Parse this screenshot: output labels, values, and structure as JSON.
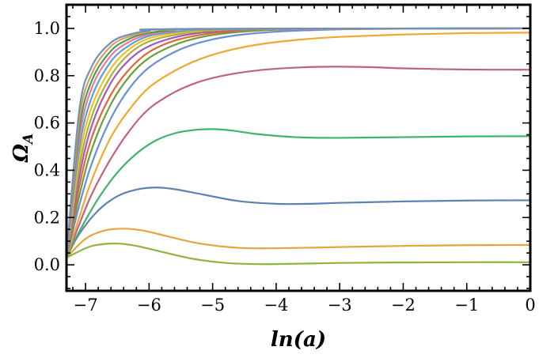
{
  "chart_data": {
    "type": "line",
    "xlabel": "ln(a)",
    "ylabel": "Ω",
    "ylabel_subscript": "A",
    "xlim": [
      -7.3,
      0
    ],
    "ylim": [
      -0.11,
      1.1
    ],
    "x_ticks": [
      -7,
      -6,
      -5,
      -4,
      -3,
      -2,
      -1,
      0
    ],
    "x_tick_labels": [
      "−7",
      "−6",
      "−5",
      "−4",
      "−3",
      "−2",
      "−1",
      "0"
    ],
    "y_ticks": [
      0.0,
      0.2,
      0.4,
      0.6,
      0.8,
      1.0
    ],
    "y_tick_labels": [
      "0.0",
      "0.2",
      "0.4",
      "0.6",
      "0.8",
      "1.0"
    ],
    "grid": false,
    "legend": "none",
    "series": [
      {
        "color": "#8eb43a",
        "points": [
          [
            -7.3,
            0.03
          ],
          [
            -7.0,
            0.07
          ],
          [
            -6.8,
            0.085
          ],
          [
            -6.5,
            0.09
          ],
          [
            -6.2,
            0.08
          ],
          [
            -5.8,
            0.055
          ],
          [
            -5.3,
            0.025
          ],
          [
            -4.8,
            0.008
          ],
          [
            -4.3,
            0.003
          ],
          [
            -3.8,
            0.004
          ],
          [
            -3.0,
            0.008
          ],
          [
            -2.0,
            0.01
          ],
          [
            -1.0,
            0.011
          ],
          [
            0,
            0.011
          ]
        ]
      },
      {
        "color": "#e8a33d",
        "points": [
          [
            -7.3,
            0.03
          ],
          [
            -7.0,
            0.11
          ],
          [
            -6.7,
            0.145
          ],
          [
            -6.4,
            0.153
          ],
          [
            -6.1,
            0.145
          ],
          [
            -5.7,
            0.12
          ],
          [
            -5.2,
            0.09
          ],
          [
            -4.6,
            0.072
          ],
          [
            -4.0,
            0.07
          ],
          [
            -3.0,
            0.075
          ],
          [
            -2.0,
            0.08
          ],
          [
            -1.0,
            0.083
          ],
          [
            0,
            0.084
          ]
        ]
      },
      {
        "color": "#5c81b3",
        "points": [
          [
            -7.3,
            0.03
          ],
          [
            -7.1,
            0.13
          ],
          [
            -6.8,
            0.23
          ],
          [
            -6.5,
            0.29
          ],
          [
            -6.2,
            0.318
          ],
          [
            -5.9,
            0.327
          ],
          [
            -5.6,
            0.32
          ],
          [
            -5.2,
            0.3
          ],
          [
            -4.6,
            0.27
          ],
          [
            -4.0,
            0.258
          ],
          [
            -3.5,
            0.258
          ],
          [
            -3.0,
            0.262
          ],
          [
            -2.0,
            0.268
          ],
          [
            -1.0,
            0.272
          ],
          [
            0,
            0.273
          ]
        ]
      },
      {
        "color": "#3fb26b",
        "points": [
          [
            -7.3,
            0.03
          ],
          [
            -7.1,
            0.14
          ],
          [
            -6.8,
            0.28
          ],
          [
            -6.5,
            0.39
          ],
          [
            -6.2,
            0.47
          ],
          [
            -5.9,
            0.525
          ],
          [
            -5.6,
            0.556
          ],
          [
            -5.3,
            0.57
          ],
          [
            -5.0,
            0.574
          ],
          [
            -4.7,
            0.568
          ],
          [
            -4.3,
            0.553
          ],
          [
            -3.7,
            0.54
          ],
          [
            -3.0,
            0.537
          ],
          [
            -2.0,
            0.54
          ],
          [
            -1.0,
            0.543
          ],
          [
            0,
            0.544
          ]
        ]
      },
      {
        "color": "#c06088",
        "points": [
          [
            -7.3,
            0.03
          ],
          [
            -7.1,
            0.17
          ],
          [
            -6.9,
            0.3
          ],
          [
            -6.6,
            0.45
          ],
          [
            -6.3,
            0.57
          ],
          [
            -6.0,
            0.66
          ],
          [
            -5.6,
            0.73
          ],
          [
            -5.2,
            0.775
          ],
          [
            -4.8,
            0.802
          ],
          [
            -4.3,
            0.822
          ],
          [
            -3.7,
            0.834
          ],
          [
            -3.1,
            0.838
          ],
          [
            -2.5,
            0.836
          ],
          [
            -2.0,
            0.831
          ],
          [
            -1.0,
            0.826
          ],
          [
            0,
            0.825
          ]
        ]
      },
      {
        "color": "#f0a830",
        "points": [
          [
            -7.3,
            0.03
          ],
          [
            -7.1,
            0.2
          ],
          [
            -6.9,
            0.36
          ],
          [
            -6.6,
            0.54
          ],
          [
            -6.3,
            0.66
          ],
          [
            -6.0,
            0.75
          ],
          [
            -5.6,
            0.82
          ],
          [
            -5.2,
            0.87
          ],
          [
            -4.7,
            0.91
          ],
          [
            -4.2,
            0.935
          ],
          [
            -3.6,
            0.953
          ],
          [
            -3.0,
            0.964
          ],
          [
            -2.0,
            0.974
          ],
          [
            -1.0,
            0.98
          ],
          [
            0,
            0.982
          ]
        ]
      },
      {
        "color": "#6a8fd8",
        "points": [
          [
            -7.3,
            0.03
          ],
          [
            -7.1,
            0.25
          ],
          [
            -6.9,
            0.43
          ],
          [
            -6.6,
            0.62
          ],
          [
            -6.3,
            0.75
          ],
          [
            -6.0,
            0.835
          ],
          [
            -5.6,
            0.9
          ],
          [
            -5.2,
            0.94
          ],
          [
            -4.7,
            0.968
          ],
          [
            -4.0,
            0.986
          ],
          [
            -3.0,
            0.996
          ],
          [
            -2.0,
            0.999
          ],
          [
            0,
            1.0
          ]
        ]
      },
      {
        "color": "#6b9e3a",
        "points": [
          [
            -7.3,
            0.03
          ],
          [
            -7.1,
            0.29
          ],
          [
            -6.9,
            0.49
          ],
          [
            -6.6,
            0.68
          ],
          [
            -6.3,
            0.8
          ],
          [
            -6.0,
            0.875
          ],
          [
            -5.6,
            0.93
          ],
          [
            -5.2,
            0.962
          ],
          [
            -4.7,
            0.982
          ],
          [
            -4.0,
            0.994
          ],
          [
            -3.0,
            0.999
          ],
          [
            0,
            1.0
          ]
        ]
      },
      {
        "color": "#e0663a",
        "points": [
          [
            -7.3,
            0.03
          ],
          [
            -7.1,
            0.33
          ],
          [
            -6.9,
            0.54
          ],
          [
            -6.6,
            0.72
          ],
          [
            -6.3,
            0.83
          ],
          [
            -6.0,
            0.9
          ],
          [
            -5.6,
            0.948
          ],
          [
            -5.2,
            0.972
          ],
          [
            -4.7,
            0.988
          ],
          [
            -4.0,
            0.996
          ],
          [
            0,
            1.0
          ]
        ]
      },
      {
        "color": "#a05ac0",
        "points": [
          [
            -7.3,
            0.03
          ],
          [
            -7.1,
            0.37
          ],
          [
            -6.9,
            0.59
          ],
          [
            -6.6,
            0.77
          ],
          [
            -6.3,
            0.87
          ],
          [
            -6.0,
            0.925
          ],
          [
            -5.6,
            0.962
          ],
          [
            -5.2,
            0.981
          ],
          [
            -4.7,
            0.992
          ],
          [
            -4.0,
            0.998
          ],
          [
            0,
            1.0
          ]
        ]
      },
      {
        "color": "#a8b430",
        "points": [
          [
            -7.3,
            0.03
          ],
          [
            -7.1,
            0.41
          ],
          [
            -6.9,
            0.63
          ],
          [
            -6.6,
            0.8
          ],
          [
            -6.3,
            0.895
          ],
          [
            -6.0,
            0.945
          ],
          [
            -5.6,
            0.972
          ],
          [
            -5.2,
            0.987
          ],
          [
            -4.7,
            0.995
          ],
          [
            -4.0,
            0.999
          ],
          [
            0,
            1.0
          ]
        ]
      },
      {
        "color": "#f0c020",
        "points": [
          [
            -7.3,
            0.03
          ],
          [
            -7.1,
            0.45
          ],
          [
            -6.9,
            0.67
          ],
          [
            -6.6,
            0.83
          ],
          [
            -6.3,
            0.915
          ],
          [
            -6.0,
            0.958
          ],
          [
            -5.6,
            0.98
          ],
          [
            -5.2,
            0.991
          ],
          [
            -4.7,
            0.997
          ],
          [
            0,
            1.0
          ]
        ]
      },
      {
        "color": "#5aa0d8",
        "points": [
          [
            -7.3,
            0.03
          ],
          [
            -7.1,
            0.49
          ],
          [
            -6.9,
            0.71
          ],
          [
            -6.6,
            0.86
          ],
          [
            -6.3,
            0.93
          ],
          [
            -6.0,
            0.968
          ],
          [
            -5.6,
            0.985
          ],
          [
            -5.2,
            0.994
          ],
          [
            -4.7,
            0.998
          ],
          [
            0,
            1.0
          ]
        ]
      },
      {
        "color": "#e87aa0",
        "points": [
          [
            -7.3,
            0.03
          ],
          [
            -7.1,
            0.53
          ],
          [
            -6.9,
            0.75
          ],
          [
            -6.6,
            0.885
          ],
          [
            -6.3,
            0.945
          ],
          [
            -6.0,
            0.975
          ],
          [
            -5.6,
            0.99
          ],
          [
            -5.2,
            0.996
          ],
          [
            0,
            1.0
          ]
        ]
      },
      {
        "color": "#4a9a60",
        "points": [
          [
            -7.3,
            0.03
          ],
          [
            -7.1,
            0.57
          ],
          [
            -6.9,
            0.78
          ],
          [
            -6.6,
            0.905
          ],
          [
            -6.3,
            0.957
          ],
          [
            -6.0,
            0.981
          ],
          [
            -5.6,
            0.993
          ],
          [
            -5.2,
            0.998
          ],
          [
            0,
            1.0
          ]
        ]
      },
      {
        "color": "#d9a050",
        "points": [
          [
            -7.3,
            0.03
          ],
          [
            -7.1,
            0.61
          ],
          [
            -6.9,
            0.81
          ],
          [
            -6.6,
            0.925
          ],
          [
            -6.3,
            0.967
          ],
          [
            -6.0,
            0.986
          ],
          [
            -5.6,
            0.995
          ],
          [
            0,
            1.0
          ]
        ]
      },
      {
        "color": "#7090c0",
        "points": [
          [
            -7.3,
            0.03
          ],
          [
            -7.1,
            0.65
          ],
          [
            -6.9,
            0.84
          ],
          [
            -6.6,
            0.94
          ],
          [
            -6.3,
            0.975
          ],
          [
            -6.0,
            0.99
          ],
          [
            -5.6,
            0.997
          ],
          [
            0,
            1.0
          ]
        ]
      }
    ]
  }
}
